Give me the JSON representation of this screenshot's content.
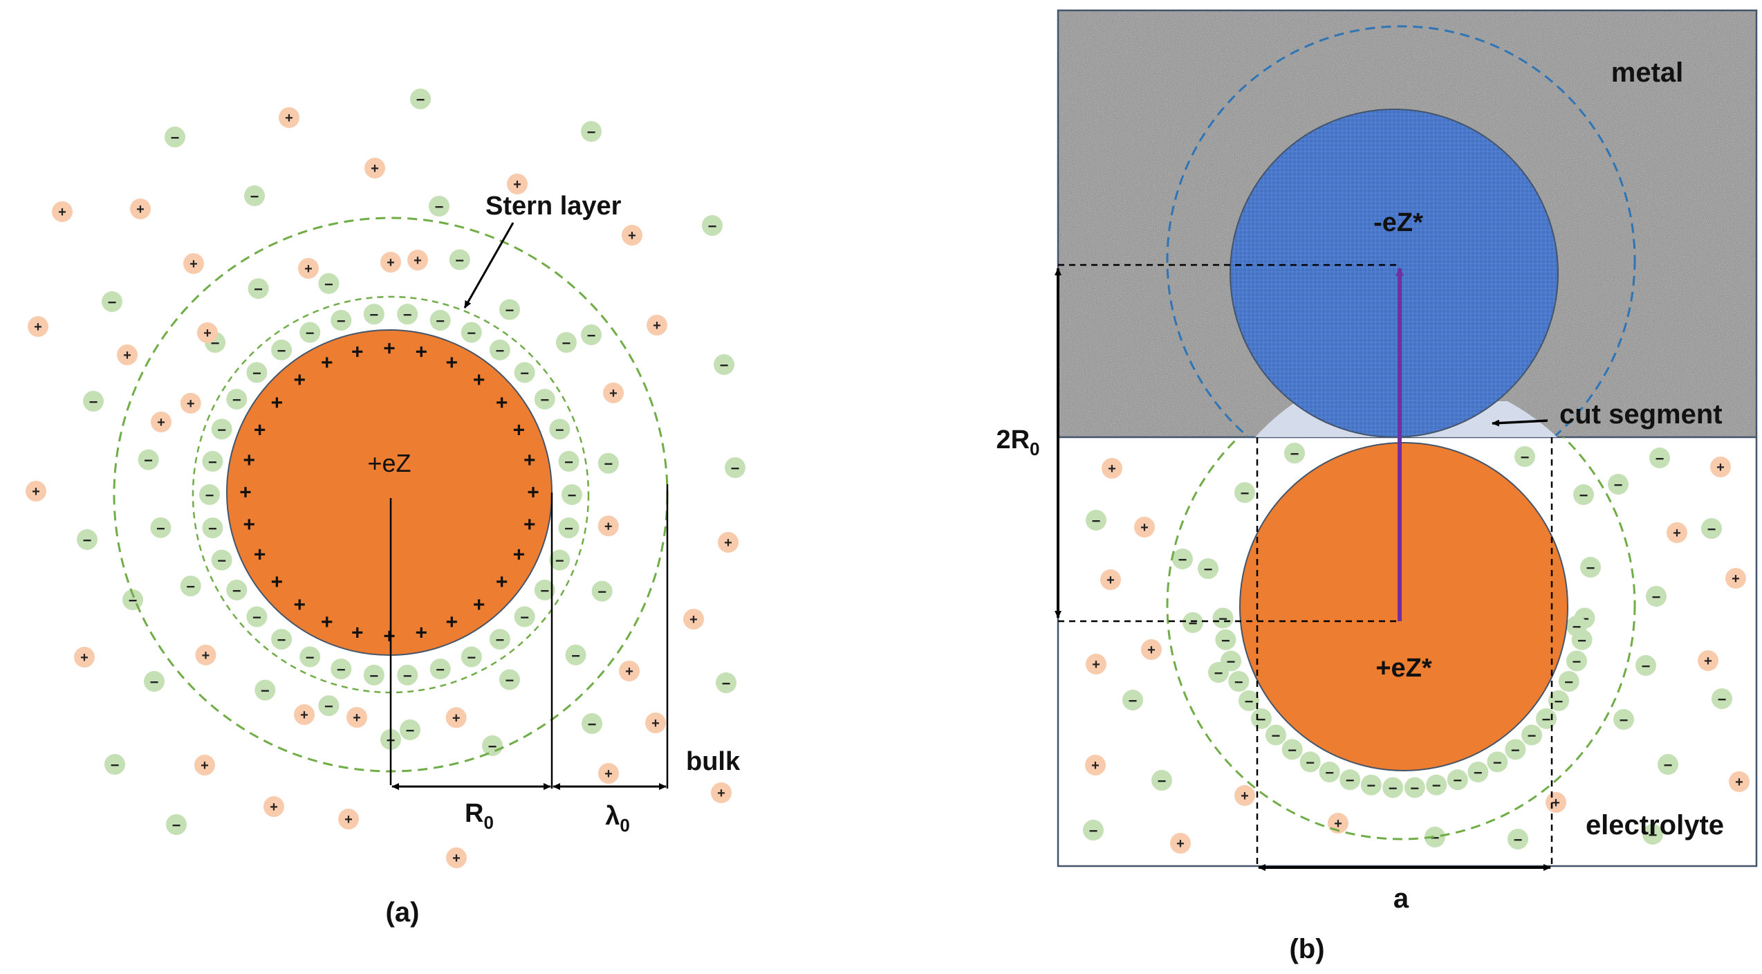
{
  "panel_a": {
    "caption": "(a)",
    "center_charge": "+eZ",
    "stern_layer_label": "Stern layer",
    "radius_label": "R",
    "radius_subscript": "0",
    "debye_label": "λ",
    "debye_subscript": "0",
    "bulk_label": "bulk",
    "surface_charge_sign": "+"
  },
  "panel_b": {
    "caption": "(b)",
    "metal_label": "metal",
    "electrolyte_label": "electrolyte",
    "cut_segment_label": "cut segment",
    "image_charge": "-eZ*",
    "real_charge": "+eZ*",
    "distance_label": "2R",
    "distance_subscript": "0",
    "width_label": "a"
  },
  "ions": {
    "cation_sign": "+",
    "anion_sign": "−"
  },
  "colors": {
    "ion_core": "#ED7D31",
    "image_core": "#4472C4",
    "cation_fill": "#F8CBAD",
    "anion_fill": "#C5E0B4",
    "stern_dash": "#70AD47",
    "mirror_dash": "#2E75B6",
    "arrow_purple": "#7030A0",
    "metal_base": "#9a9a9a",
    "cut_segment_fill": "#D9E2F3"
  }
}
